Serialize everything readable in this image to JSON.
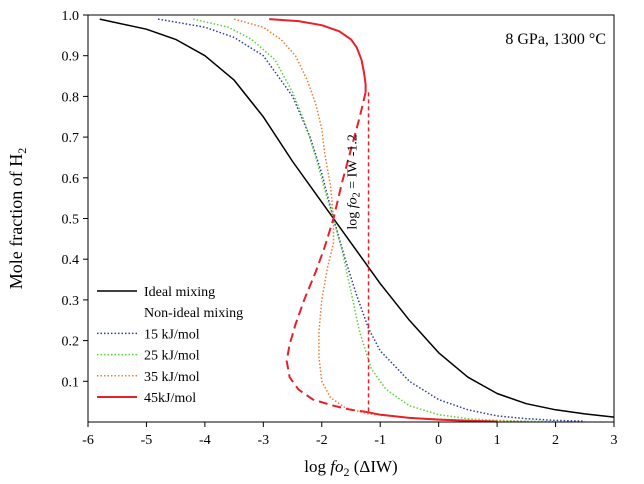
{
  "chart_data": {
    "type": "line",
    "title": "",
    "condition_label": "8 GPa, 1300 °C",
    "xlabel": {
      "prefix": "log ",
      "italic": "fo",
      "sub": "2",
      "suffix": " (ΔIW)"
    },
    "ylabel": {
      "prefix": "Mole fraction of H",
      "sub": "2"
    },
    "xlim": [
      -6,
      3
    ],
    "ylim": [
      0,
      1.0
    ],
    "xticks": [
      -6,
      -5,
      -4,
      -3,
      -2,
      -1,
      0,
      1,
      2,
      3
    ],
    "yticks": [
      0.1,
      0.2,
      0.3,
      0.4,
      0.5,
      0.6,
      0.7,
      0.8,
      0.9,
      1.0
    ],
    "xtick_labels": [
      "-6",
      "-5",
      "-4",
      "-3",
      "-2",
      "-1",
      "0",
      "1",
      "2",
      "3"
    ],
    "ytick_labels": [
      "0.1",
      "0.2",
      "0.3",
      "0.4",
      "0.5",
      "0.6",
      "0.7",
      "0.8",
      "0.9",
      "1.0"
    ],
    "grid": false,
    "legend_position": "bottom-left",
    "legend_heading": "Non-ideal mixing",
    "vline": {
      "x": -1.2,
      "y_range": [
        0.02,
        0.81
      ],
      "color": "#e8202a",
      "label": {
        "prefix": "log ",
        "italic": "fo",
        "sub": "2",
        "suffix": " = IW -1.2"
      }
    },
    "series": [
      {
        "name": "Ideal mixing",
        "color": "#000000",
        "style": "solid",
        "x": [
          -5.8,
          -5.0,
          -4.5,
          -4.0,
          -3.5,
          -3.0,
          -2.5,
          -2.0,
          -1.8,
          -1.5,
          -1.0,
          -0.5,
          0.0,
          0.5,
          1.0,
          1.5,
          2.0,
          2.5,
          3.0
        ],
        "y": [
          0.99,
          0.965,
          0.94,
          0.9,
          0.84,
          0.75,
          0.64,
          0.54,
          0.5,
          0.44,
          0.34,
          0.25,
          0.17,
          0.11,
          0.07,
          0.045,
          0.03,
          0.02,
          0.012
        ]
      },
      {
        "name": "15 kJ/mol",
        "color": "#2a3aa8",
        "style": "dotted",
        "x": [
          -4.8,
          -4.0,
          -3.5,
          -3.0,
          -2.5,
          -2.2,
          -2.0,
          -1.8,
          -1.6,
          -1.4,
          -1.2,
          -1.0,
          -0.5,
          0.0,
          0.5,
          1.0,
          1.5,
          2.0,
          2.5
        ],
        "y": [
          0.99,
          0.97,
          0.945,
          0.9,
          0.8,
          0.7,
          0.61,
          0.5,
          0.4,
          0.31,
          0.23,
          0.175,
          0.1,
          0.055,
          0.03,
          0.015,
          0.008,
          0.004,
          0.002
        ]
      },
      {
        "name": "25 kJ/mol",
        "color": "#5ad23a",
        "style": "dotted",
        "x": [
          -4.2,
          -3.6,
          -3.2,
          -2.8,
          -2.5,
          -2.3,
          -2.1,
          -1.95,
          -1.8,
          -1.65,
          -1.5,
          -1.35,
          -1.15,
          -0.9,
          -0.5,
          0.0,
          0.5,
          1.0,
          1.5,
          2.0
        ],
        "y": [
          0.99,
          0.97,
          0.94,
          0.89,
          0.81,
          0.74,
          0.65,
          0.57,
          0.5,
          0.42,
          0.32,
          0.22,
          0.13,
          0.08,
          0.04,
          0.018,
          0.008,
          0.004,
          0.002,
          0.001
        ]
      },
      {
        "name": "35 kJ/mol",
        "color": "#ef7d2e",
        "style": "dotted",
        "x": [
          -3.5,
          -3.0,
          -2.7,
          -2.45,
          -2.25,
          -2.1,
          -2.0,
          -1.95,
          -1.85,
          -1.8,
          -1.8,
          -1.9,
          -2.0,
          -2.05,
          -2.05,
          -2.0,
          -1.85,
          -1.6,
          -1.2,
          -0.5,
          0.5,
          1.5
        ],
        "y": [
          0.99,
          0.97,
          0.94,
          0.9,
          0.84,
          0.78,
          0.72,
          0.66,
          0.58,
          0.5,
          0.44,
          0.38,
          0.3,
          0.22,
          0.16,
          0.1,
          0.06,
          0.035,
          0.02,
          0.01,
          0.004,
          0.001
        ]
      },
      {
        "name": "45kJ/mol",
        "color": "#e8202a",
        "style": "solid",
        "x": [
          -2.9,
          -2.4,
          -2.0,
          -1.7,
          -1.5,
          -1.4,
          -1.32,
          -1.28,
          -1.25,
          -1.25
        ],
        "y": [
          0.99,
          0.985,
          0.975,
          0.96,
          0.94,
          0.92,
          0.89,
          0.86,
          0.83,
          0.81
        ]
      },
      {
        "name": "",
        "color": "#e8202a",
        "style": "dashed",
        "x": [
          -1.25,
          -1.35,
          -1.5,
          -1.65,
          -1.8,
          -1.95,
          -2.1,
          -2.3,
          -2.45,
          -2.55,
          -2.6,
          -2.55,
          -2.4,
          -2.15,
          -1.8,
          -1.5,
          -1.25
        ],
        "y": [
          0.81,
          0.75,
          0.67,
          0.59,
          0.5,
          0.43,
          0.37,
          0.3,
          0.24,
          0.19,
          0.15,
          0.11,
          0.08,
          0.055,
          0.04,
          0.03,
          0.025
        ]
      },
      {
        "name": "",
        "color": "#e8202a",
        "style": "solid",
        "x": [
          -1.25,
          -1.0,
          -0.5,
          0.0,
          0.5,
          1.0
        ],
        "y": [
          0.025,
          0.018,
          0.01,
          0.006,
          0.003,
          0.001
        ]
      }
    ],
    "legend_entries": [
      {
        "label": "Ideal mixing",
        "color": "#000000",
        "style": "solid"
      },
      {
        "label": "Non-ideal mixing",
        "color": "",
        "style": "none"
      },
      {
        "label": "15 kJ/mol",
        "color": "#2a3aa8",
        "style": "dotted"
      },
      {
        "label": "25 kJ/mol",
        "color": "#5ad23a",
        "style": "dotted"
      },
      {
        "label": "35 kJ/mol",
        "color": "#ef7d2e",
        "style": "dotted"
      },
      {
        "label": "45kJ/mol",
        "color": "#e8202a",
        "style": "solid"
      }
    ]
  }
}
